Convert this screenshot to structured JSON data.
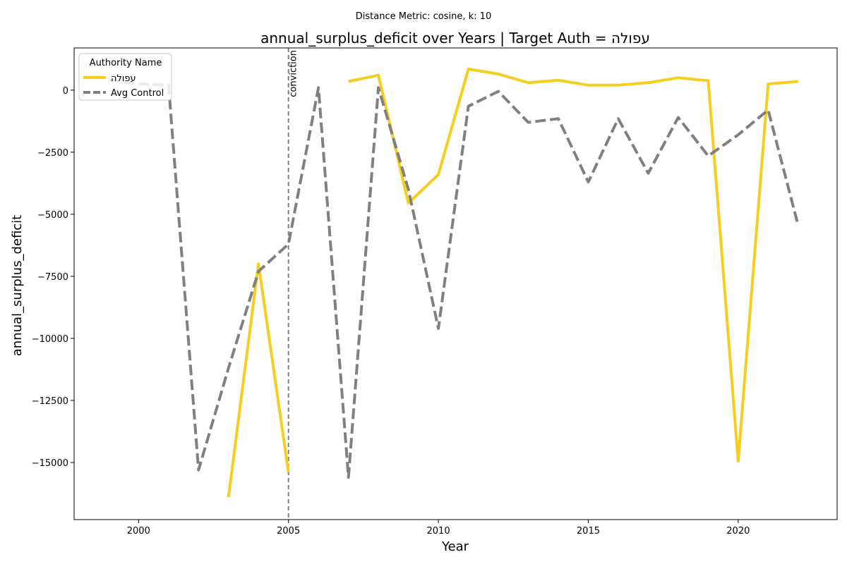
{
  "chart_data": {
    "type": "line",
    "suptitle": "Distance Metric: cosine, k: 10",
    "title": "annual_surplus_deficit over Years | Target Auth = עפולה",
    "xlabel": "Year",
    "ylabel": "annual_surplus_deficit",
    "xlim": [
      1997.85,
      2023.3
    ],
    "ylim": [
      -17300,
      1700
    ],
    "xticks": [
      2000,
      2005,
      2010,
      2015,
      2020
    ],
    "yticks": [
      0,
      -2500,
      -5000,
      -7500,
      -10000,
      -12500,
      -15000
    ],
    "ytick_labels": [
      "0",
      "−2500",
      "−5000",
      "−7500",
      "−10000",
      "−12500",
      "−15000"
    ],
    "grid": false,
    "legend": {
      "title": "Authority Name",
      "placement": "top-left"
    },
    "series": [
      {
        "name": "עפולה",
        "color": "#f5ce1e",
        "style": "solid",
        "segments": [
          [
            [
              2003,
              -16400
            ],
            [
              2004,
              -7000
            ],
            [
              2005,
              -15400
            ]
          ],
          [
            [
              2007,
              350
            ],
            [
              2008,
              600
            ],
            [
              2009,
              -4550
            ],
            [
              2010,
              -3400
            ],
            [
              2011,
              850
            ],
            [
              2012,
              650
            ],
            [
              2013,
              300
            ],
            [
              2014,
              400
            ],
            [
              2015,
              200
            ],
            [
              2016,
              200
            ],
            [
              2017,
              300
            ],
            [
              2018,
              500
            ],
            [
              2019,
              380
            ],
            [
              2020,
              -14950
            ],
            [
              2021,
              250
            ],
            [
              2022,
              350
            ]
          ]
        ]
      },
      {
        "name": "Avg Control",
        "color": "#808080",
        "style": "dashed",
        "segments": [
          [
            [
              1999,
              400
            ],
            [
              2000,
              250
            ],
            [
              2001,
              200
            ],
            [
              2002,
              -15300
            ],
            [
              2003,
              -11200
            ],
            [
              2004,
              -7300
            ],
            [
              2005,
              -6200
            ],
            [
              2006,
              100
            ],
            [
              2007,
              -15600
            ],
            [
              2008,
              100
            ],
            [
              2009,
              -4000
            ],
            [
              2010,
              -9600
            ],
            [
              2011,
              -650
            ],
            [
              2012,
              -50
            ],
            [
              2013,
              -1300
            ],
            [
              2014,
              -1150
            ],
            [
              2015,
              -3700
            ],
            [
              2016,
              -1150
            ],
            [
              2017,
              -3350
            ],
            [
              2018,
              -1100
            ],
            [
              2019,
              -2650
            ],
            [
              2020,
              -1800
            ],
            [
              2021,
              -800
            ],
            [
              2022,
              -5450
            ]
          ]
        ]
      }
    ],
    "annotations": [
      {
        "type": "vline",
        "x": 2005,
        "label": "conviction",
        "color": "#808080",
        "style": "dashed"
      }
    ]
  }
}
